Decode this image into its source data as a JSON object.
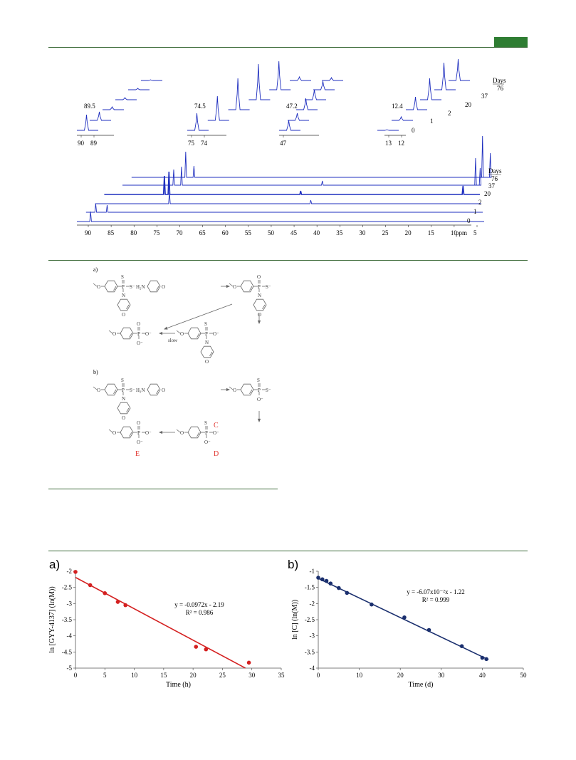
{
  "colors": {
    "rule": "#3d6b3a",
    "accent": "#2e7d32",
    "nmr": "#1f2fbf",
    "red": "#d42020",
    "navy": "#1a2f6e",
    "scheme_red": "#e0302a"
  },
  "nmr_inset": {
    "groups": [
      {
        "peak_label": "89.5",
        "ticks": [
          "90",
          "89"
        ]
      },
      {
        "peak_label": "74.5",
        "ticks": [
          "75",
          "74"
        ]
      },
      {
        "peak_label": "47.2",
        "ticks": [
          "47"
        ]
      },
      {
        "peak_label": "12.4",
        "ticks": [
          "13",
          "12"
        ]
      }
    ],
    "day_labels": [
      "0",
      "1",
      "2",
      "20",
      "37",
      "76"
    ],
    "days_title": "Days"
  },
  "nmr_main": {
    "x_ticks": [
      "90",
      "85",
      "80",
      "75",
      "70",
      "65",
      "60",
      "55",
      "50",
      "45",
      "40",
      "35",
      "30",
      "25",
      "20",
      "15",
      "10",
      "5"
    ],
    "unit": "ppm",
    "days_title": "Days",
    "day_labels": [
      "76",
      "37",
      "20",
      "2",
      "1",
      "0"
    ]
  },
  "scheme": {
    "part_a": "a)",
    "part_b": "b)",
    "slow_label": "slow",
    "label_C": "C",
    "label_D": "D",
    "label_E": "E",
    "atoms": {
      "S": "S",
      "O": "O",
      "N": "N",
      "P": "P",
      "S_minus": "S⁻",
      "O_minus": "O⁻",
      "H2N": "H₂N"
    }
  },
  "chart_data": [
    {
      "type": "scatter",
      "panel_label": "a)",
      "xlabel": "Time (h)",
      "ylabel": "ln [GYY-4137] (ln(M))",
      "xlim": [
        0,
        35
      ],
      "ylim": [
        -5,
        -2
      ],
      "x_ticks": [
        "0",
        "5",
        "10",
        "15",
        "20",
        "25",
        "30",
        "35"
      ],
      "y_ticks": [
        "-2",
        "-2.5",
        "-3",
        "-3.5",
        "-4",
        "-4.5",
        "-5"
      ],
      "points": [
        [
          0,
          -2.02
        ],
        [
          2.5,
          -2.43
        ],
        [
          5,
          -2.68
        ],
        [
          7.2,
          -2.95
        ],
        [
          8.5,
          -3.05
        ],
        [
          20.5,
          -4.34
        ],
        [
          22.2,
          -4.42
        ],
        [
          29.5,
          -4.83
        ]
      ],
      "fit": {
        "slope": -0.0972,
        "intercept": -2.19
      },
      "equation": "y = -0.0972x - 2.19",
      "r2": "R² = 0.986"
    },
    {
      "type": "scatter",
      "panel_label": "b)",
      "xlabel": "Time (d)",
      "ylabel": "ln [C] (ln(M))",
      "xlim": [
        0,
        50
      ],
      "ylim": [
        -4,
        -1
      ],
      "x_ticks": [
        "0",
        "10",
        "20",
        "30",
        "40",
        "50"
      ],
      "y_ticks": [
        "-1",
        "-1.5",
        "-2",
        "-2.5",
        "-3",
        "-3.5",
        "-4"
      ],
      "points": [
        [
          0,
          -1.2
        ],
        [
          1,
          -1.25
        ],
        [
          2,
          -1.3
        ],
        [
          3,
          -1.38
        ],
        [
          5,
          -1.52
        ],
        [
          7,
          -1.67
        ],
        [
          13,
          -2.03
        ],
        [
          21,
          -2.43
        ],
        [
          27,
          -2.82
        ],
        [
          35,
          -3.32
        ],
        [
          40,
          -3.68
        ],
        [
          41,
          -3.72
        ]
      ],
      "fit": {
        "slope": -0.0607,
        "intercept": -1.22
      },
      "equation": "y = -6.07x10⁻²x - 1.22",
      "r2": "R² = 0.999"
    }
  ]
}
